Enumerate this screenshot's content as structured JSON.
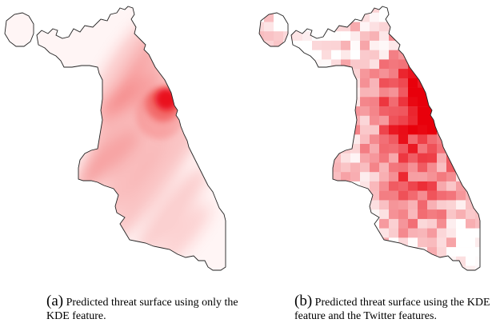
{
  "figure": {
    "panel_a": {
      "label": "(a)",
      "caption": "Predicted threat surface using only the KDE feature."
    },
    "panel_b": {
      "label": "(b)",
      "caption": "Predicted threat surface using the KDE feature and the Twitter features."
    }
  },
  "colors": {
    "low": "#ffffff",
    "high": "#e8000b",
    "outline": "#222222"
  },
  "grid": {
    "cols": 25,
    "rows": 30,
    "seed": 7
  }
}
